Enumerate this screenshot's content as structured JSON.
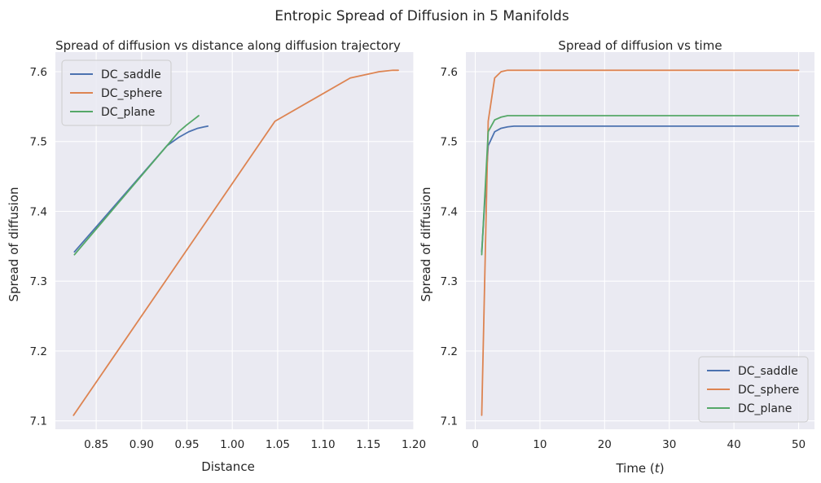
{
  "figure": {
    "suptitle": "Entropic Spread of Diffusion in 5 Manifolds"
  },
  "chart_data": [
    {
      "type": "line",
      "title": "Spread of diffusion vs distance along diffusion trajectory",
      "xlabel": "Distance",
      "ylabel": "Spread of diffusion",
      "xlim": [
        0.805,
        1.2
      ],
      "ylim": [
        7.088,
        7.628
      ],
      "xticks": [
        0.85,
        0.9,
        0.95,
        1.0,
        1.05,
        1.1,
        1.15,
        1.2
      ],
      "xtick_labels": [
        "0.85",
        "0.90",
        "0.95",
        "1.00",
        "1.05",
        "1.10",
        "1.15",
        "1.20"
      ],
      "yticks": [
        7.1,
        7.2,
        7.3,
        7.4,
        7.5,
        7.6
      ],
      "ytick_labels": [
        "7.1",
        "7.2",
        "7.3",
        "7.4",
        "7.5",
        "7.6"
      ],
      "grid": true,
      "legend_position": "upper-left",
      "series": [
        {
          "name": "DC_saddle",
          "color": "#4c72b0",
          "x": [
            0.826,
            0.928,
            0.941,
            0.952,
            0.962,
            0.969,
            0.973
          ],
          "y": [
            7.342,
            7.494,
            7.506,
            7.514,
            7.519,
            7.521,
            7.522
          ]
        },
        {
          "name": "DC_sphere",
          "color": "#dd8452",
          "x": [
            0.825,
            1.047,
            1.13,
            1.162,
            1.177,
            1.183
          ],
          "y": [
            7.108,
            7.529,
            7.591,
            7.6,
            7.602,
            7.602
          ]
        },
        {
          "name": "DC_plane",
          "color": "#55a868",
          "x": [
            0.826,
            0.928,
            0.941,
            0.95,
            0.957,
            0.961,
            0.963
          ],
          "y": [
            7.338,
            7.494,
            7.514,
            7.524,
            7.531,
            7.535,
            7.537
          ]
        }
      ]
    },
    {
      "type": "line",
      "title": "Spread of diffusion vs time",
      "xlabel": "Time (t)",
      "ylabel": "Spread of diffusion",
      "xlim": [
        -1.45,
        52.45
      ],
      "ylim": [
        7.088,
        7.628
      ],
      "xticks": [
        0,
        10,
        20,
        30,
        40,
        50
      ],
      "xtick_labels": [
        "0",
        "10",
        "20",
        "30",
        "40",
        "50"
      ],
      "yticks": [
        7.1,
        7.2,
        7.3,
        7.4,
        7.5,
        7.6
      ],
      "ytick_labels": [
        "7.1",
        "7.2",
        "7.3",
        "7.4",
        "7.5",
        "7.6"
      ],
      "grid": true,
      "legend_position": "lower-right",
      "series": [
        {
          "name": "DC_saddle",
          "color": "#4c72b0",
          "x": [
            1,
            2,
            3,
            4,
            5,
            6,
            8,
            10,
            50
          ],
          "y": [
            7.342,
            7.494,
            7.514,
            7.519,
            7.521,
            7.522,
            7.522,
            7.522,
            7.522
          ]
        },
        {
          "name": "DC_sphere",
          "color": "#dd8452",
          "x": [
            1,
            2,
            3,
            4,
            5,
            6,
            8,
            50
          ],
          "y": [
            7.108,
            7.529,
            7.591,
            7.6,
            7.602,
            7.602,
            7.602,
            7.602
          ]
        },
        {
          "name": "DC_plane",
          "color": "#55a868",
          "x": [
            1,
            2,
            3,
            4,
            5,
            6,
            8,
            50
          ],
          "y": [
            7.338,
            7.514,
            7.531,
            7.535,
            7.537,
            7.537,
            7.537,
            7.537
          ]
        }
      ]
    }
  ]
}
